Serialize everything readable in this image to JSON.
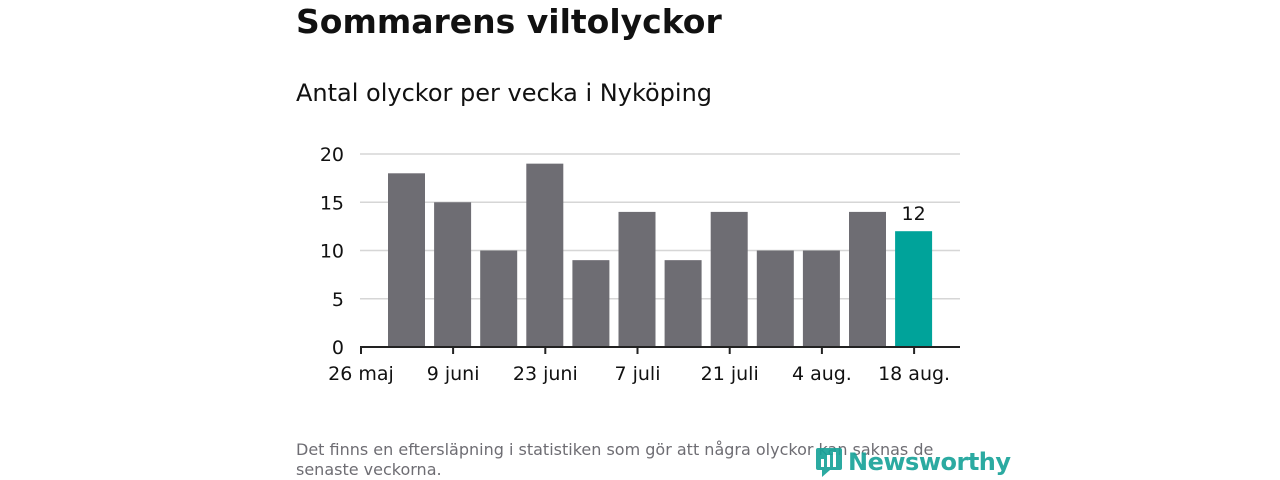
{
  "title": "Sommarens viltolyckor",
  "subtitle": "Antal olyckor per vecka i Nyköping",
  "footnote": "Det finns en eftersläpning i statistiken som gör att några olyckor kan saknas de senaste veckorna.",
  "logo": "Newsworthy",
  "colors": {
    "bar": "#6e6d73",
    "highlight": "#00a39a",
    "grid": "#d6d6d6",
    "axis": "#222222",
    "text": "#111111"
  },
  "chart_data": {
    "type": "bar",
    "title": "Antal olyckor per vecka i Nyköping",
    "xlabel": "",
    "ylabel": "",
    "ylim": [
      0,
      20
    ],
    "yticks": [
      0,
      5,
      10,
      15,
      20
    ],
    "xtick_labels": [
      "26 maj",
      "9 juni",
      "23 juni",
      "7 juli",
      "21 juli",
      "4 aug.",
      "18 aug."
    ],
    "values": [
      18,
      15,
      10,
      19,
      9,
      14,
      9,
      14,
      10,
      10,
      14,
      12
    ],
    "highlight_index": 11,
    "highlight_label": "12",
    "grid": true
  }
}
